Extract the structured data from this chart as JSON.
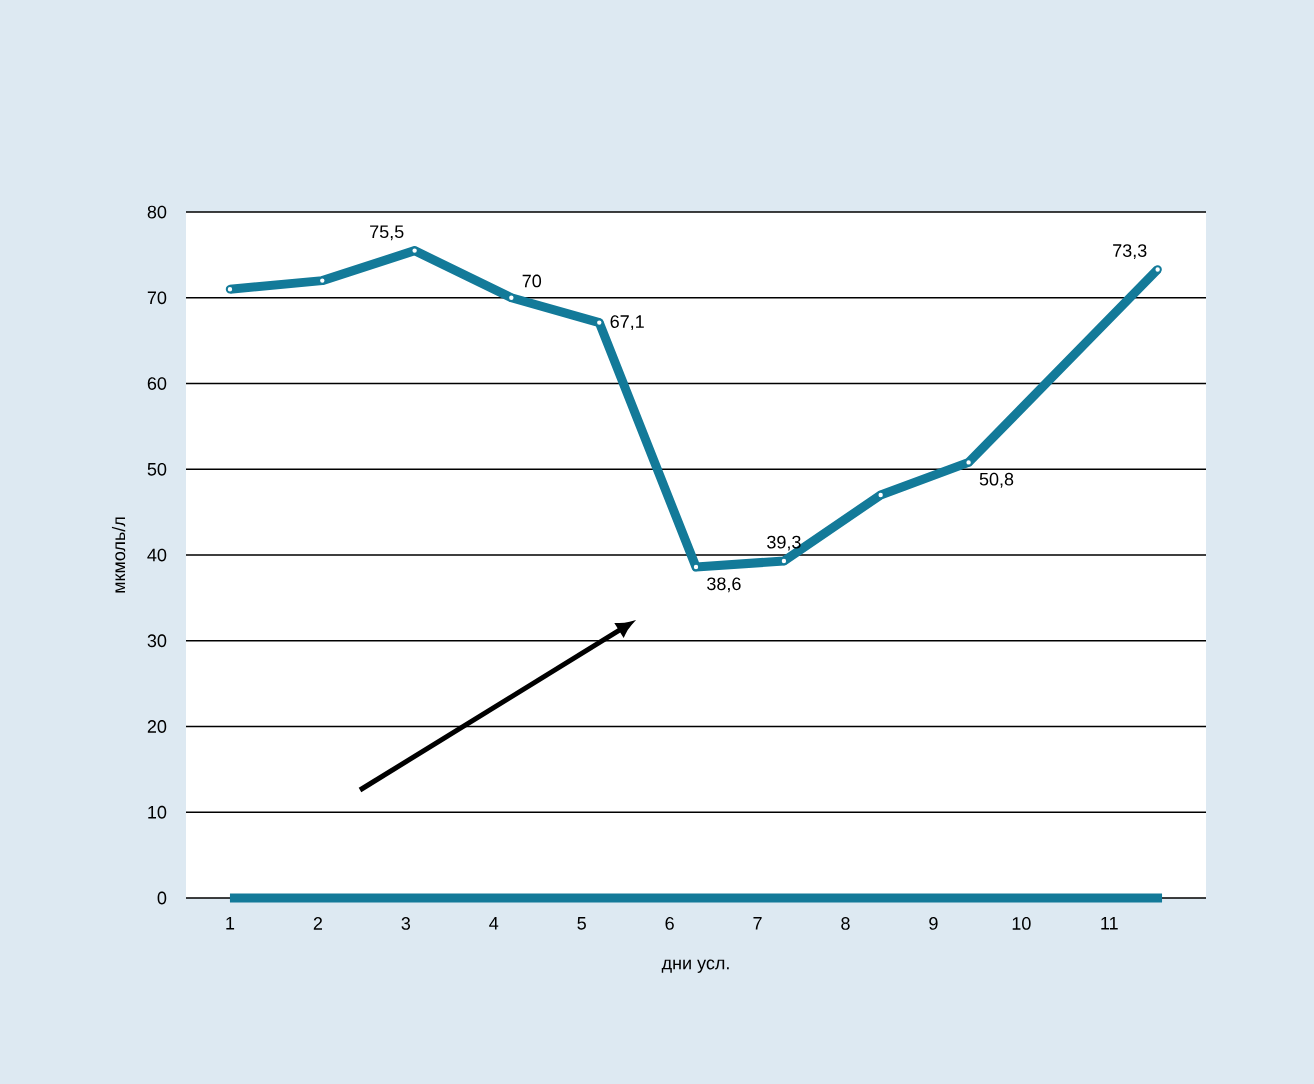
{
  "chart_data": {
    "type": "line",
    "xlabel": "дни усл.",
    "ylabel": "мкмоль/л",
    "x": [
      1,
      2.05,
      3.1,
      4.2,
      5.2,
      6.3,
      7.3,
      8.4,
      9.4,
      11.55
    ],
    "series": [
      {
        "color": "#137a99",
        "values": [
          71,
          72,
          75.5,
          70,
          67.1,
          38.6,
          39.3,
          47,
          50.8,
          73.3
        ],
        "value_labels": [
          null,
          null,
          "75,5",
          "70",
          "67,1",
          "38,6",
          "39,3",
          null,
          "50,8",
          "73,3"
        ]
      },
      {
        "color": "#137a99",
        "x": [
          1,
          11.6
        ],
        "values": [
          0,
          0
        ],
        "marker": "none"
      }
    ],
    "xlim": [
      0.5,
      12.1
    ],
    "xticks": [
      1,
      2,
      3,
      4,
      5,
      6,
      7,
      8,
      9,
      10,
      11
    ],
    "ylim": [
      0,
      80
    ],
    "yticks": [
      0,
      10,
      20,
      30,
      40,
      50,
      60,
      70,
      80
    ],
    "grid": "y",
    "marker": "circle",
    "line_style": "solid"
  }
}
